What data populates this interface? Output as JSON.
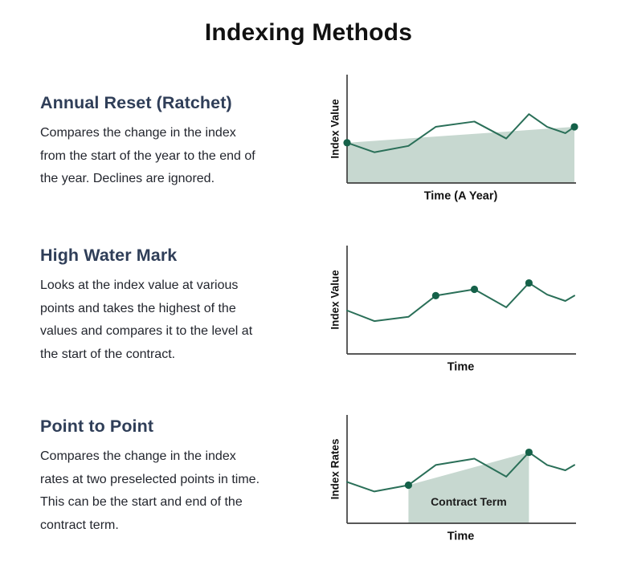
{
  "page": {
    "title": "Indexing Methods"
  },
  "theme": {
    "line_color": "#2a6f58",
    "dot_color": "#156149",
    "shade_color": "#c7d8d0",
    "axis_color": "#414141",
    "title_color": "#111111",
    "heading_color": "#2f3e58",
    "body_color": "#23262e",
    "shade_label_color": "#1d1d1d",
    "axis_label_color": "#111111"
  },
  "sections": [
    {
      "heading": "Annual Reset (Ratchet)",
      "description_lines": [
        "Compares the change in the index",
        "from the start of the year to the end of",
        "the year. Declines are ignored."
      ]
    },
    {
      "heading": "High Water Mark",
      "description_lines": [
        "Looks at the index value at various",
        "points and takes the highest of the",
        "values and compares it to the level at",
        "the start of the contract."
      ]
    },
    {
      "heading": "Point to Point",
      "description_lines": [
        "Compares the change in the index",
        "rates at two preselected points in time.",
        "This can be the start and end of the",
        "contract term."
      ]
    }
  ],
  "chart_data": [
    {
      "type": "line",
      "title": "Annual Reset (Ratchet)",
      "xlabel": "Time (A Year)",
      "ylabel": "Index Value",
      "x": [
        0,
        0.12,
        0.27,
        0.39,
        0.56,
        0.7,
        0.8,
        0.88,
        0.96,
        1.0
      ],
      "y": [
        0.38,
        0.29,
        0.35,
        0.53,
        0.58,
        0.42,
        0.65,
        0.53,
        0.47,
        0.53
      ],
      "ylim": [
        0,
        1
      ],
      "xlim": [
        0,
        1
      ],
      "grid": false,
      "legend": false,
      "axis_ticks": false,
      "marker_indices": [
        0,
        9
      ],
      "shaded_region": {
        "from_index": 0,
        "to_index": 9,
        "label": ""
      }
    },
    {
      "type": "line",
      "title": "High Water Mark",
      "xlabel": "Time",
      "ylabel": "Index Value",
      "x": [
        0,
        0.12,
        0.27,
        0.39,
        0.56,
        0.7,
        0.8,
        0.88,
        0.96,
        1.0
      ],
      "y": [
        0.41,
        0.31,
        0.35,
        0.55,
        0.61,
        0.44,
        0.67,
        0.56,
        0.5,
        0.55
      ],
      "ylim": [
        0,
        1
      ],
      "xlim": [
        0,
        1
      ],
      "grid": false,
      "legend": false,
      "axis_ticks": false,
      "marker_indices": [
        3,
        4,
        6
      ],
      "shaded_region": null
    },
    {
      "type": "line",
      "title": "Point to Point",
      "xlabel": "Time",
      "ylabel": "Index Rates",
      "x": [
        0,
        0.12,
        0.27,
        0.39,
        0.56,
        0.7,
        0.8,
        0.88,
        0.96,
        1.0
      ],
      "y": [
        0.39,
        0.3,
        0.36,
        0.55,
        0.61,
        0.44,
        0.67,
        0.55,
        0.5,
        0.55
      ],
      "ylim": [
        0,
        1
      ],
      "xlim": [
        0,
        1
      ],
      "grid": false,
      "legend": false,
      "axis_ticks": false,
      "marker_indices": [
        2,
        6
      ],
      "shaded_region": {
        "from_index": 2,
        "to_index": 6,
        "label": "Contract Term"
      }
    }
  ]
}
